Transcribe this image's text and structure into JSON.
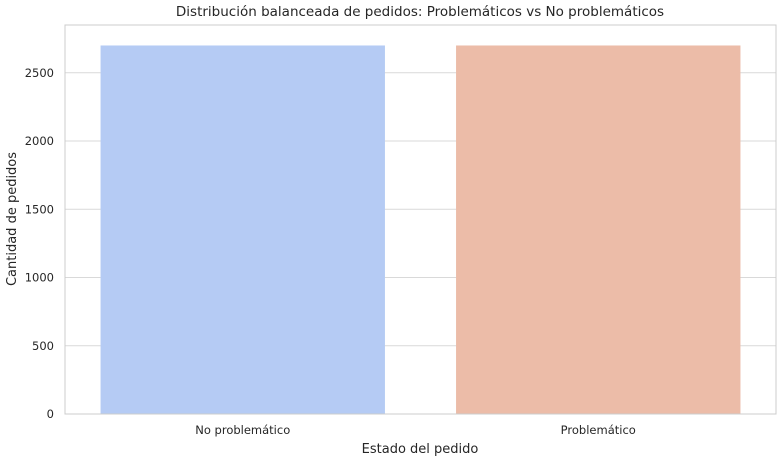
{
  "chart_data": {
    "type": "bar",
    "title": "Distribución balanceada de pedidos: Problemáticos vs No problemáticos",
    "xlabel": "Estado del pedido",
    "ylabel": "Cantidad de pedidos",
    "categories": [
      "No problemático",
      "Problemático"
    ],
    "values": [
      2700,
      2700
    ],
    "colors": [
      "#b5cbf4",
      "#ecbca8"
    ],
    "ylim": [
      0,
      2850
    ],
    "yticks": [
      0,
      500,
      1000,
      1500,
      2000,
      2500
    ],
    "grid": true,
    "grid_axis": "y",
    "legend": "none"
  }
}
